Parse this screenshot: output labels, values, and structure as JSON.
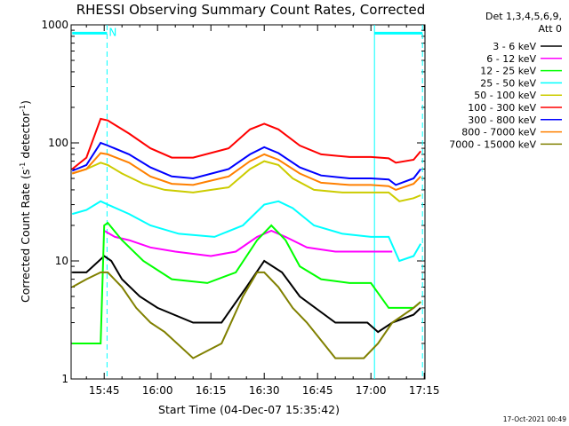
{
  "chart_data": {
    "type": "line",
    "title": "RHESSI Observing Summary Count Rates, Corrected",
    "xlabel": "Start Time (04-Dec-07 15:35:42)",
    "ylabel": "Corrected Count Rate (s",
    "ylabel_sup1": "-1",
    "ylabel_mid": " detector",
    "ylabel_sup2": "-1",
    "ylabel_end": ")",
    "y_scale": "log",
    "ylim": [
      1,
      1000
    ],
    "xlim_min": [
      35.7,
      135.2
    ],
    "x_unit": "minutes after 15:00 UT",
    "x_ticks": [
      {
        "min": 45,
        "label": "15:45"
      },
      {
        "min": 60,
        "label": "16:00"
      },
      {
        "min": 75,
        "label": "16:15"
      },
      {
        "min": 90,
        "label": "16:30"
      },
      {
        "min": 105,
        "label": "16:45"
      },
      {
        "min": 120,
        "label": "17:00"
      },
      {
        "min": 135,
        "label": "17:15"
      }
    ],
    "y_ticks": [
      {
        "v": 1,
        "label": "1"
      },
      {
        "v": 10,
        "label": "10"
      },
      {
        "v": 100,
        "label": "100"
      },
      {
        "v": 1000,
        "label": "1000"
      }
    ],
    "legend_header": [
      "Det 1,3,4,5,6,9,",
      "Att 0"
    ],
    "legend_position": "right",
    "series": [
      {
        "name": "3 - 6 keV",
        "color": "#000000",
        "x": [
          36,
          40,
          45,
          47,
          50,
          55,
          60,
          70,
          78,
          85,
          90,
          95,
          100,
          110,
          119,
          122,
          126,
          132,
          134
        ],
        "y": [
          8,
          8,
          11,
          10,
          7,
          5,
          4,
          3,
          3,
          6,
          10,
          8,
          5,
          3,
          3,
          2.5,
          3,
          3.5,
          4
        ]
      },
      {
        "name": "6 - 12 keV",
        "color": "#ff00ff",
        "x": [
          45,
          48,
          52,
          58,
          65,
          75,
          82,
          88,
          92,
          96,
          102,
          110,
          120,
          126
        ],
        "y": [
          18,
          16,
          15,
          13,
          12,
          11,
          12,
          16,
          18,
          16,
          13,
          12,
          12,
          12
        ]
      },
      {
        "name": "12 - 25 keV",
        "color": "#00ff00",
        "x": [
          36,
          44,
          45,
          46,
          50,
          56,
          64,
          74,
          82,
          88,
          92,
          96,
          100,
          106,
          114,
          120,
          125,
          132,
          134
        ],
        "y": [
          2,
          2,
          20,
          21,
          15,
          10,
          7,
          6.5,
          8,
          15,
          20,
          15,
          9,
          7,
          6.5,
          6.5,
          4,
          4,
          4.5
        ]
      },
      {
        "name": "25 - 50 keV",
        "color": "#00ffff",
        "x": [
          36,
          40,
          44,
          46,
          52,
          58,
          66,
          76,
          84,
          90,
          94,
          98,
          104,
          112,
          120,
          125,
          128,
          132,
          134
        ],
        "y": [
          25,
          27,
          32,
          30,
          25,
          20,
          17,
          16,
          20,
          30,
          32,
          28,
          20,
          17,
          16,
          16,
          10,
          11,
          14
        ]
      },
      {
        "name": "50 - 100 keV",
        "color": "#cccc00",
        "x": [
          36,
          40,
          44,
          46,
          50,
          56,
          62,
          70,
          80,
          86,
          90,
          94,
          98,
          104,
          112,
          120,
          125,
          128,
          132,
          134
        ],
        "y": [
          55,
          60,
          68,
          65,
          55,
          45,
          40,
          38,
          42,
          60,
          70,
          65,
          50,
          40,
          38,
          38,
          38,
          32,
          34,
          36
        ]
      },
      {
        "name": "100 - 300 keV",
        "color": "#ff0000",
        "x": [
          36,
          40,
          44,
          46,
          52,
          58,
          64,
          70,
          80,
          86,
          90,
          94,
          100,
          106,
          114,
          120,
          125,
          127,
          132,
          134
        ],
        "y": [
          60,
          75,
          160,
          155,
          120,
          90,
          75,
          75,
          90,
          130,
          145,
          130,
          95,
          80,
          76,
          76,
          74,
          68,
          72,
          85
        ]
      },
      {
        "name": "300 - 800 keV",
        "color": "#0000ff",
        "x": [
          36,
          40,
          44,
          46,
          52,
          58,
          64,
          70,
          80,
          86,
          90,
          94,
          100,
          106,
          114,
          120,
          125,
          127,
          132,
          134
        ],
        "y": [
          58,
          65,
          100,
          95,
          80,
          62,
          52,
          50,
          60,
          80,
          92,
          82,
          62,
          53,
          50,
          50,
          49,
          44,
          50,
          60
        ]
      },
      {
        "name": "800 - 7000 keV",
        "color": "#ff8000",
        "x": [
          36,
          40,
          44,
          46,
          52,
          58,
          64,
          70,
          80,
          86,
          90,
          94,
          100,
          106,
          114,
          120,
          125,
          127,
          132,
          134
        ],
        "y": [
          55,
          60,
          82,
          80,
          68,
          52,
          45,
          44,
          52,
          70,
          80,
          72,
          55,
          46,
          44,
          44,
          43,
          40,
          45,
          52
        ]
      },
      {
        "name": "7000 - 15000 keV",
        "color": "#808000",
        "x": [
          36,
          40,
          44,
          46,
          50,
          54,
          58,
          62,
          70,
          78,
          84,
          88,
          90,
          94,
          98,
          102,
          110,
          118,
          122,
          126,
          132,
          134
        ],
        "y": [
          6,
          7,
          8,
          8,
          6,
          4,
          3,
          2.5,
          1.5,
          2,
          5,
          8,
          8,
          6,
          4,
          3,
          1.5,
          1.5,
          2,
          3,
          4,
          4.5
        ]
      }
    ],
    "annotations": {
      "segments_top": [
        {
          "x0": 36,
          "x1": 45.8,
          "y": 850
        },
        {
          "x0": 121,
          "x1": 134.5,
          "y": 850
        }
      ],
      "n_label": "N",
      "n_label_x": 46.3,
      "vlines": [
        {
          "x": 45.8,
          "style": "dashed"
        },
        {
          "x": 121,
          "style": "solid"
        },
        {
          "x": 134.5,
          "style": "dashed"
        }
      ],
      "color": "#00ffff"
    }
  },
  "timestamp": "17-Oct-2021 00:49"
}
